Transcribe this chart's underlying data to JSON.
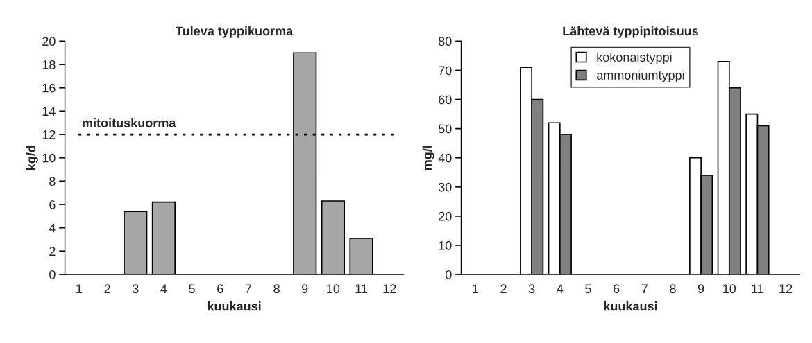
{
  "chart_data": [
    {
      "type": "bar",
      "title": "Tuleva typpikuorma",
      "xlabel": "kuukausi",
      "ylabel": "kg/d",
      "categories": [
        "1",
        "2",
        "3",
        "4",
        "5",
        "6",
        "7",
        "8",
        "9",
        "10",
        "11",
        "12"
      ],
      "series": [
        {
          "color": "#a6a6a6",
          "values": [
            null,
            null,
            5.4,
            6.2,
            null,
            null,
            null,
            null,
            19,
            6.3,
            3.1,
            null
          ]
        }
      ],
      "ylim": [
        0,
        20
      ],
      "yticks": [
        0,
        2,
        4,
        6,
        8,
        10,
        12,
        14,
        16,
        18,
        20
      ],
      "grid": false,
      "legend": false,
      "ref_lines": [
        {
          "axis": "y",
          "value": 12,
          "label": "mitoituskuorma",
          "line_style": "dotted",
          "color": "#000000"
        }
      ]
    },
    {
      "type": "bar",
      "title": "Lähtevä typpipitoisuus",
      "xlabel": "kuukausi",
      "ylabel": "mg/l",
      "categories": [
        "1",
        "2",
        "3",
        "4",
        "5",
        "6",
        "7",
        "8",
        "9",
        "10",
        "11",
        "12"
      ],
      "series": [
        {
          "name": "kokonaistyppi",
          "color": "#ffffff",
          "values": [
            null,
            null,
            71,
            52,
            null,
            null,
            null,
            null,
            40,
            73,
            55,
            null
          ]
        },
        {
          "name": "ammoniumtyppi",
          "color": "#808080",
          "values": [
            null,
            null,
            60,
            48,
            null,
            null,
            null,
            null,
            34,
            64,
            51,
            null
          ]
        }
      ],
      "ylim": [
        0,
        80
      ],
      "yticks": [
        0,
        10,
        20,
        30,
        40,
        50,
        60,
        70,
        80
      ],
      "grid": false,
      "legend": "top"
    }
  ]
}
